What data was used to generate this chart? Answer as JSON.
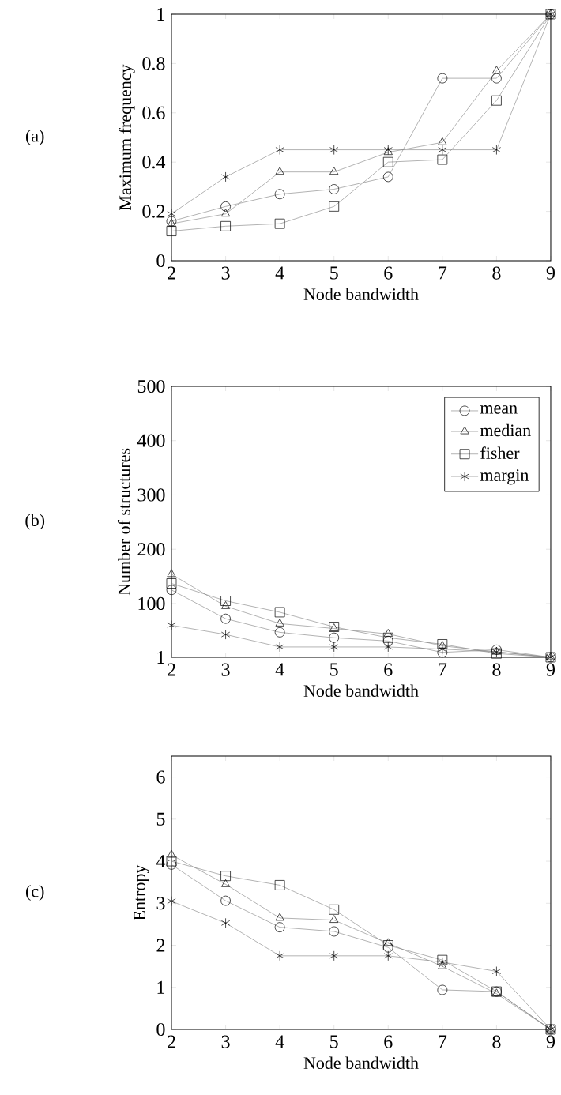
{
  "chart_data": [
    {
      "type": "line",
      "xlabel": "Node bandwidth",
      "ylabel": "Maximum frequency",
      "annotations": [
        "(a)"
      ],
      "x": [
        2,
        3,
        4,
        5,
        6,
        7,
        8,
        9
      ],
      "xlim": [
        2,
        9
      ],
      "xticks": [
        2,
        3,
        4,
        5,
        6,
        7,
        8,
        9
      ],
      "ylim": [
        0,
        1
      ],
      "yticks": [
        0,
        0.2,
        0.4,
        0.6,
        0.8,
        1
      ],
      "series": [
        {
          "color": "#808080",
          "marker": "circle",
          "values": [
            0.16,
            0.22,
            0.27,
            0.29,
            0.34,
            0.74,
            0.74,
            1
          ]
        },
        {
          "color": "#808080",
          "marker": "triangle",
          "values": [
            0.15,
            0.19,
            0.36,
            0.36,
            0.44,
            0.48,
            0.77,
            1
          ]
        },
        {
          "color": "#808080",
          "marker": "square",
          "values": [
            0.12,
            0.14,
            0.15,
            0.22,
            0.4,
            0.41,
            0.65,
            1
          ]
        },
        {
          "color": "#808080",
          "marker": "cross",
          "values": [
            0.19,
            0.34,
            0.45,
            0.45,
            0.45,
            0.45,
            0.45,
            1
          ]
        }
      ]
    },
    {
      "type": "line",
      "xlabel": "Node bandwidth",
      "ylabel": "Number of structures",
      "annotations": [
        "(b)"
      ],
      "x": [
        2,
        3,
        4,
        5,
        6,
        7,
        8,
        9
      ],
      "xlim": [
        2,
        9
      ],
      "xticks": [
        2,
        3,
        4,
        5,
        6,
        7,
        8,
        9
      ],
      "ylim": [
        1,
        500
      ],
      "yticks": [
        1,
        100,
        200,
        300,
        400,
        500
      ],
      "legend": "top right",
      "series": [
        {
          "name": "mean",
          "color": "#808080",
          "marker": "circle",
          "values": [
            125,
            72,
            47,
            37,
            31,
            10,
            15,
            1
          ]
        },
        {
          "name": "median",
          "color": "#808080",
          "marker": "triangle",
          "values": [
            154,
            95,
            63,
            54,
            44,
            22,
            11,
            1
          ]
        },
        {
          "name": "fisher",
          "color": "#808080",
          "marker": "square",
          "values": [
            137,
            105,
            84,
            57,
            37,
            25,
            8,
            1
          ]
        },
        {
          "name": "margin",
          "color": "#808080",
          "marker": "cross",
          "values": [
            60,
            43,
            20,
            20,
            20,
            16,
            11,
            1
          ]
        }
      ]
    },
    {
      "type": "line",
      "xlabel": "Node bandwidth",
      "ylabel": "Entropy",
      "annotations": [
        "(c)"
      ],
      "x": [
        2,
        3,
        4,
        5,
        6,
        7,
        8,
        9
      ],
      "xlim": [
        2,
        9
      ],
      "xticks": [
        2,
        3,
        4,
        5,
        6,
        7,
        8,
        9
      ],
      "ylim": [
        0,
        6.5
      ],
      "yticks": [
        0,
        1,
        2,
        3,
        4,
        5,
        6
      ],
      "series": [
        {
          "color": "#808080",
          "marker": "circle",
          "values": [
            3.92,
            3.06,
            2.43,
            2.33,
            1.95,
            0.94,
            0.9,
            0
          ]
        },
        {
          "color": "#808080",
          "marker": "triangle",
          "values": [
            4.15,
            3.45,
            2.65,
            2.6,
            2.05,
            1.5,
            0.85,
            0
          ]
        },
        {
          "color": "#808080",
          "marker": "square",
          "values": [
            4.0,
            3.65,
            3.43,
            2.85,
            2.0,
            1.65,
            0.9,
            0
          ]
        },
        {
          "color": "#808080",
          "marker": "cross",
          "values": [
            3.05,
            2.53,
            1.75,
            1.75,
            1.75,
            1.6,
            1.38,
            0
          ]
        }
      ]
    }
  ]
}
